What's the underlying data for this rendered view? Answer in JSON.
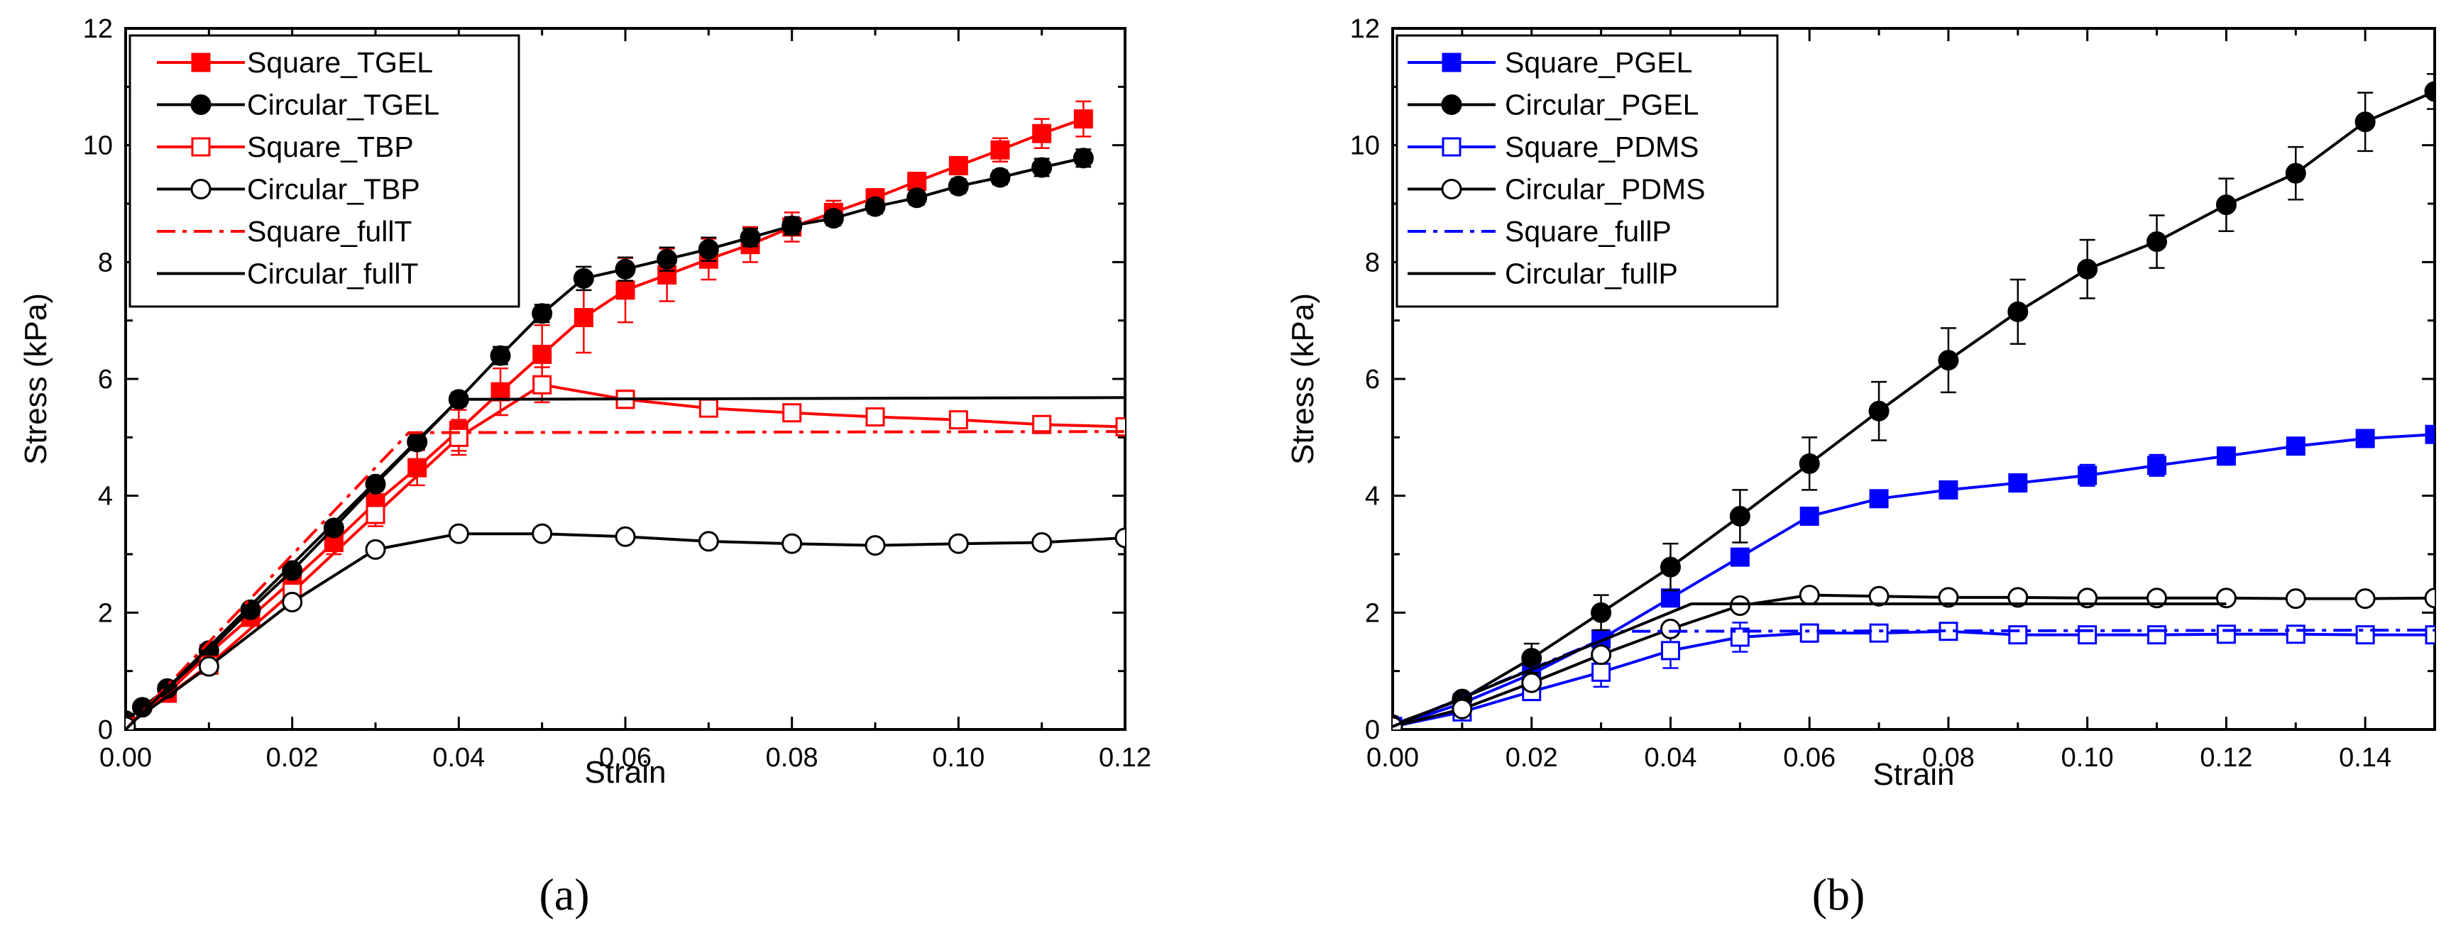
{
  "colors": {
    "red": "#ff0000",
    "black": "#000000",
    "blue": "#0000ff"
  },
  "chart_data": [
    {
      "type": "line",
      "caption": "(a)",
      "xlabel": "Strain",
      "ylabel": "Stress (kPa)",
      "xlim": [
        0,
        0.12
      ],
      "ylim": [
        0,
        12
      ],
      "xticks": [
        "0.00",
        "0.02",
        "0.04",
        "0.06",
        "0.08",
        "0.10",
        "0.12"
      ],
      "yticks": [
        "0",
        "2",
        "4",
        "6",
        "8",
        "10",
        "12"
      ],
      "legend_position": "top-left",
      "series": [
        {
          "name": "Square_TGEL",
          "color": "#ff0000",
          "marker": "square",
          "filled": true,
          "dash": "solid",
          "x": [
            0,
            0.005,
            0.01,
            0.015,
            0.02,
            0.025,
            0.03,
            0.035,
            0.04,
            0.045,
            0.05,
            0.055,
            0.06,
            0.065,
            0.07,
            0.075,
            0.08,
            0.085,
            0.09,
            0.095,
            0.1,
            0.105,
            0.11,
            0.115
          ],
          "y": [
            0.05,
            0.62,
            1.3,
            1.92,
            2.55,
            3.2,
            3.88,
            4.48,
            5.12,
            5.78,
            6.42,
            7.05,
            7.52,
            7.78,
            8.05,
            8.3,
            8.6,
            8.85,
            9.1,
            9.38,
            9.65,
            9.92,
            10.2,
            10.45
          ],
          "err": [
            0,
            0.05,
            0.08,
            0.1,
            0.15,
            0.2,
            0.25,
            0.3,
            0.35,
            0.4,
            0.5,
            0.6,
            0.55,
            0.45,
            0.35,
            0.3,
            0.25,
            0.2,
            0.15,
            0.15,
            0.15,
            0.2,
            0.25,
            0.3
          ]
        },
        {
          "name": "Circular_TGEL",
          "color": "#000000",
          "marker": "circle",
          "filled": true,
          "dash": "solid",
          "x": [
            0,
            0.002,
            0.005,
            0.01,
            0.015,
            0.02,
            0.025,
            0.03,
            0.035,
            0.04,
            0.045,
            0.05,
            0.055,
            0.06,
            0.065,
            0.07,
            0.075,
            0.08,
            0.085,
            0.09,
            0.095,
            0.1,
            0.105,
            0.11,
            0.115
          ],
          "y": [
            0.15,
            0.38,
            0.7,
            1.35,
            2.05,
            2.72,
            3.45,
            4.2,
            4.92,
            5.65,
            6.4,
            7.12,
            7.72,
            7.88,
            8.05,
            8.22,
            8.42,
            8.62,
            8.75,
            8.95,
            9.1,
            9.3,
            9.45,
            9.62,
            9.78
          ],
          "err": [
            0,
            0.05,
            0.05,
            0.08,
            0.08,
            0.1,
            0.1,
            0.12,
            0.12,
            0.12,
            0.15,
            0.15,
            0.2,
            0.2,
            0.2,
            0.2,
            0.15,
            0.15,
            0.12,
            0.12,
            0.12,
            0.12,
            0.12,
            0.15,
            0.15
          ]
        },
        {
          "name": "Square_TBP",
          "color": "#ff0000",
          "marker": "square",
          "filled": false,
          "dash": "solid",
          "x": [
            0,
            0.01,
            0.02,
            0.03,
            0.04,
            0.05,
            0.06,
            0.07,
            0.08,
            0.09,
            0.1,
            0.11,
            0.12
          ],
          "y": [
            0.05,
            1.1,
            2.35,
            3.68,
            5.0,
            5.9,
            5.65,
            5.5,
            5.42,
            5.35,
            5.3,
            5.22,
            5.18
          ],
          "err": [
            0,
            0.08,
            0.15,
            0.2,
            0.3,
            0.3,
            0.15,
            0.1,
            0.1,
            0.1,
            0.1,
            0.1,
            0.1
          ]
        },
        {
          "name": "Circular_TBP",
          "color": "#000000",
          "marker": "circle",
          "filled": false,
          "dash": "solid",
          "x": [
            0,
            0.01,
            0.02,
            0.03,
            0.04,
            0.05,
            0.06,
            0.07,
            0.08,
            0.09,
            0.1,
            0.11,
            0.12
          ],
          "y": [
            0.05,
            1.08,
            2.18,
            3.08,
            3.35,
            3.35,
            3.3,
            3.22,
            3.18,
            3.15,
            3.18,
            3.2,
            3.28
          ],
          "err": [
            0,
            0,
            0,
            0,
            0,
            0,
            0,
            0,
            0,
            0,
            0,
            0,
            0
          ]
        },
        {
          "name": "Square_fullT",
          "color": "#ff0000",
          "marker": "none",
          "filled": false,
          "dash": "dashdot",
          "x": [
            0,
            0.034,
            0.12
          ],
          "y": [
            0,
            5.08,
            5.1
          ],
          "err": []
        },
        {
          "name": "Circular_fullT",
          "color": "#000000",
          "marker": "none",
          "filled": false,
          "dash": "solid",
          "x": [
            0,
            0.04,
            0.12
          ],
          "y": [
            0,
            5.65,
            5.68
          ],
          "err": []
        }
      ]
    },
    {
      "type": "line",
      "caption": "(b)",
      "xlabel": "Strain",
      "ylabel": "Stress (kPa)",
      "xlim": [
        0,
        0.15
      ],
      "ylim": [
        0,
        12
      ],
      "xticks": [
        "0.00",
        "0.02",
        "0.04",
        "0.06",
        "0.08",
        "0.10",
        "0.12",
        "0.14"
      ],
      "yticks": [
        "0",
        "2",
        "4",
        "6",
        "8",
        "10",
        "12"
      ],
      "legend_position": "top-left",
      "series": [
        {
          "name": "Square_PGEL",
          "color": "#0000ff",
          "marker": "square",
          "filled": true,
          "dash": "solid",
          "x": [
            0,
            0.01,
            0.02,
            0.03,
            0.04,
            0.05,
            0.06,
            0.07,
            0.08,
            0.09,
            0.1,
            0.11,
            0.12,
            0.13,
            0.14,
            0.15
          ],
          "y": [
            0.05,
            0.45,
            0.95,
            1.55,
            2.25,
            2.95,
            3.65,
            3.95,
            4.1,
            4.22,
            4.35,
            4.52,
            4.68,
            4.85,
            4.98,
            5.05
          ],
          "err": [
            0,
            0.05,
            0.1,
            0.12,
            0.12,
            0.12,
            0.12,
            0.12,
            0.12,
            0.15,
            0.18,
            0.18,
            0.15,
            0.12,
            0.1,
            0.1
          ]
        },
        {
          "name": "Circular_PGEL",
          "color": "#000000",
          "marker": "circle",
          "filled": true,
          "dash": "solid",
          "x": [
            0,
            0.01,
            0.02,
            0.03,
            0.04,
            0.05,
            0.06,
            0.07,
            0.08,
            0.09,
            0.1,
            0.11,
            0.12,
            0.13,
            0.14,
            0.15
          ],
          "y": [
            0.08,
            0.52,
            1.22,
            2.0,
            2.78,
            3.65,
            4.55,
            5.45,
            6.32,
            7.15,
            7.88,
            8.35,
            8.98,
            9.52,
            10.4,
            10.92
          ],
          "err": [
            0,
            0.1,
            0.25,
            0.3,
            0.4,
            0.45,
            0.45,
            0.5,
            0.55,
            0.55,
            0.5,
            0.45,
            0.45,
            0.45,
            0.5,
            0.3
          ]
        },
        {
          "name": "Square_PDMS",
          "color": "#0000ff",
          "marker": "square",
          "filled": false,
          "dash": "solid",
          "x": [
            0,
            0.01,
            0.02,
            0.03,
            0.04,
            0.05,
            0.06,
            0.07,
            0.08,
            0.09,
            0.1,
            0.11,
            0.12,
            0.13,
            0.14,
            0.15
          ],
          "y": [
            0.05,
            0.3,
            0.65,
            0.98,
            1.35,
            1.58,
            1.65,
            1.65,
            1.68,
            1.62,
            1.62,
            1.62,
            1.63,
            1.63,
            1.62,
            1.62
          ],
          "err": [
            0,
            0.05,
            0.15,
            0.25,
            0.3,
            0.25,
            0.15,
            0.1,
            0.1,
            0.05,
            0.05,
            0.05,
            0.05,
            0.05,
            0.05,
            0.05
          ]
        },
        {
          "name": "Circular_PDMS",
          "color": "#000000",
          "marker": "circle",
          "filled": false,
          "dash": "solid",
          "x": [
            0,
            0.01,
            0.02,
            0.03,
            0.04,
            0.05,
            0.06,
            0.07,
            0.08,
            0.09,
            0.1,
            0.11,
            0.12,
            0.13,
            0.14,
            0.15
          ],
          "y": [
            0.05,
            0.35,
            0.8,
            1.28,
            1.72,
            2.12,
            2.3,
            2.28,
            2.26,
            2.26,
            2.25,
            2.25,
            2.25,
            2.24,
            2.24,
            2.25
          ],
          "err": [
            0,
            0,
            0,
            0,
            0,
            0,
            0,
            0,
            0,
            0,
            0,
            0,
            0,
            0,
            0,
            0
          ]
        },
        {
          "name": "Square_fullP",
          "color": "#0000ff",
          "marker": "none",
          "filled": false,
          "dash": "dashdot",
          "x": [
            0,
            0.033,
            0.15
          ],
          "y": [
            0.05,
            1.68,
            1.7
          ],
          "err": []
        },
        {
          "name": "Circular_fullP",
          "color": "#000000",
          "marker": "none",
          "filled": false,
          "dash": "solid",
          "x": [
            0,
            0.043,
            0.12
          ],
          "y": [
            0.05,
            2.15,
            2.15
          ],
          "err": []
        }
      ]
    }
  ]
}
